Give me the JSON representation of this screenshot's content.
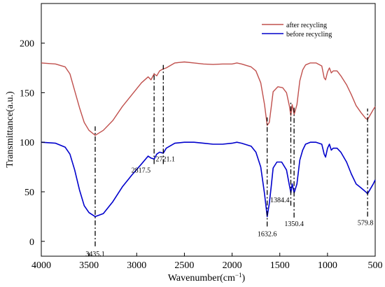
{
  "chart_data": {
    "type": "line",
    "title": "",
    "xlabel": "Wavenumber(cm",
    "xlabel_unit_sup": "−1",
    "xlabel_close": ")",
    "ylabel": "Transmittance(a.u.)",
    "xlim": [
      4000,
      500
    ],
    "ylim": [
      -15,
      240
    ],
    "x_reversed": true,
    "grid": false,
    "legend_position": "top-right",
    "x_ticks": [
      4000,
      3500,
      3000,
      2500,
      2000,
      1500,
      1000,
      500
    ],
    "x_tick_labels": [
      "4000",
      "3500",
      "3000",
      "2500",
      "2000",
      "1500",
      "1000",
      "500"
    ],
    "y_ticks": [
      0,
      50,
      100,
      150,
      200
    ],
    "y_tick_labels": [
      "0",
      "50",
      "100",
      "150",
      "200"
    ],
    "series": [
      {
        "name": "after recycling",
        "color": "#c0504d",
        "points": [
          [
            4000,
            180
          ],
          [
            3850,
            179
          ],
          [
            3750,
            176
          ],
          [
            3700,
            169
          ],
          [
            3650,
            152
          ],
          [
            3600,
            135
          ],
          [
            3550,
            120
          ],
          [
            3500,
            112
          ],
          [
            3435,
            107
          ],
          [
            3350,
            112
          ],
          [
            3250,
            122
          ],
          [
            3150,
            136
          ],
          [
            3050,
            148
          ],
          [
            2950,
            160
          ],
          [
            2880,
            166
          ],
          [
            2850,
            163
          ],
          [
            2817,
            169
          ],
          [
            2790,
            167
          ],
          [
            2760,
            172
          ],
          [
            2721,
            174
          ],
          [
            2690,
            175
          ],
          [
            2600,
            180
          ],
          [
            2500,
            181
          ],
          [
            2400,
            180
          ],
          [
            2300,
            179
          ],
          [
            2200,
            178.5
          ],
          [
            2100,
            179
          ],
          [
            2000,
            179
          ],
          [
            1950,
            180
          ],
          [
            1900,
            179
          ],
          [
            1800,
            176
          ],
          [
            1750,
            172
          ],
          [
            1700,
            160
          ],
          [
            1660,
            138
          ],
          [
            1632,
            117
          ],
          [
            1610,
            120
          ],
          [
            1590,
            135
          ],
          [
            1570,
            151
          ],
          [
            1520,
            156
          ],
          [
            1470,
            155
          ],
          [
            1430,
            150
          ],
          [
            1400,
            137
          ],
          [
            1384,
            127
          ],
          [
            1370,
            138
          ],
          [
            1350,
            128
          ],
          [
            1320,
            138
          ],
          [
            1290,
            162
          ],
          [
            1260,
            173
          ],
          [
            1230,
            178
          ],
          [
            1180,
            180
          ],
          [
            1120,
            180
          ],
          [
            1060,
            177
          ],
          [
            1035,
            165
          ],
          [
            1020,
            163
          ],
          [
            1000,
            171
          ],
          [
            980,
            175
          ],
          [
            960,
            170
          ],
          [
            940,
            172
          ],
          [
            900,
            172
          ],
          [
            860,
            167
          ],
          [
            800,
            158
          ],
          [
            750,
            148
          ],
          [
            700,
            137
          ],
          [
            650,
            130
          ],
          [
            600,
            124
          ],
          [
            580,
            123
          ],
          [
            550,
            128
          ],
          [
            520,
            133
          ],
          [
            500,
            136
          ]
        ]
      },
      {
        "name": "before recycling",
        "color": "#0000cc",
        "points": [
          [
            4000,
            100
          ],
          [
            3850,
            99
          ],
          [
            3750,
            95
          ],
          [
            3700,
            88
          ],
          [
            3650,
            72
          ],
          [
            3600,
            52
          ],
          [
            3550,
            36
          ],
          [
            3500,
            29
          ],
          [
            3435,
            25
          ],
          [
            3350,
            28
          ],
          [
            3250,
            40
          ],
          [
            3150,
            55
          ],
          [
            3050,
            67
          ],
          [
            2950,
            78
          ],
          [
            2880,
            86
          ],
          [
            2850,
            84
          ],
          [
            2817,
            83
          ],
          [
            2790,
            88
          ],
          [
            2760,
            90
          ],
          [
            2721,
            89
          ],
          [
            2690,
            94
          ],
          [
            2600,
            99
          ],
          [
            2500,
            100
          ],
          [
            2400,
            100
          ],
          [
            2300,
            99
          ],
          [
            2200,
            98
          ],
          [
            2100,
            98
          ],
          [
            2000,
            99
          ],
          [
            1950,
            100
          ],
          [
            1900,
            99
          ],
          [
            1800,
            96
          ],
          [
            1750,
            90
          ],
          [
            1700,
            75
          ],
          [
            1660,
            48
          ],
          [
            1632,
            25
          ],
          [
            1610,
            38
          ],
          [
            1590,
            55
          ],
          [
            1570,
            74
          ],
          [
            1530,
            80
          ],
          [
            1480,
            80
          ],
          [
            1430,
            72
          ],
          [
            1400,
            57
          ],
          [
            1384,
            49
          ],
          [
            1370,
            58
          ],
          [
            1350,
            49
          ],
          [
            1320,
            58
          ],
          [
            1290,
            82
          ],
          [
            1260,
            92
          ],
          [
            1230,
            98
          ],
          [
            1180,
            100
          ],
          [
            1120,
            100
          ],
          [
            1060,
            98
          ],
          [
            1035,
            88
          ],
          [
            1020,
            85
          ],
          [
            1000,
            94
          ],
          [
            980,
            98
          ],
          [
            960,
            92
          ],
          [
            940,
            94
          ],
          [
            900,
            94
          ],
          [
            860,
            90
          ],
          [
            800,
            80
          ],
          [
            750,
            68
          ],
          [
            700,
            58
          ],
          [
            650,
            54
          ],
          [
            600,
            50
          ],
          [
            580,
            48
          ],
          [
            550,
            53
          ],
          [
            520,
            58
          ],
          [
            500,
            62
          ]
        ]
      }
    ],
    "annotations": [
      {
        "label": "3435.1",
        "x": 3435.1,
        "y_from": -5,
        "y_to": 116
      },
      {
        "label": "2817.5",
        "x": 2817.5,
        "y_from": 78,
        "y_to": 170
      },
      {
        "label": "2721.1",
        "x": 2721.1,
        "y_from": 78,
        "y_to": 178
      },
      {
        "label": "1632.6",
        "x": 1632.6,
        "y_from": 15,
        "y_to": 125
      },
      {
        "label": "1384.4",
        "x": 1384.4,
        "y_from": 36,
        "y_to": 140
      },
      {
        "label": "1350.4",
        "x": 1350.4,
        "y_from": 24,
        "y_to": 136
      },
      {
        "label": "579.8",
        "x": 579.8,
        "y_from": 25,
        "y_to": 134
      }
    ]
  }
}
